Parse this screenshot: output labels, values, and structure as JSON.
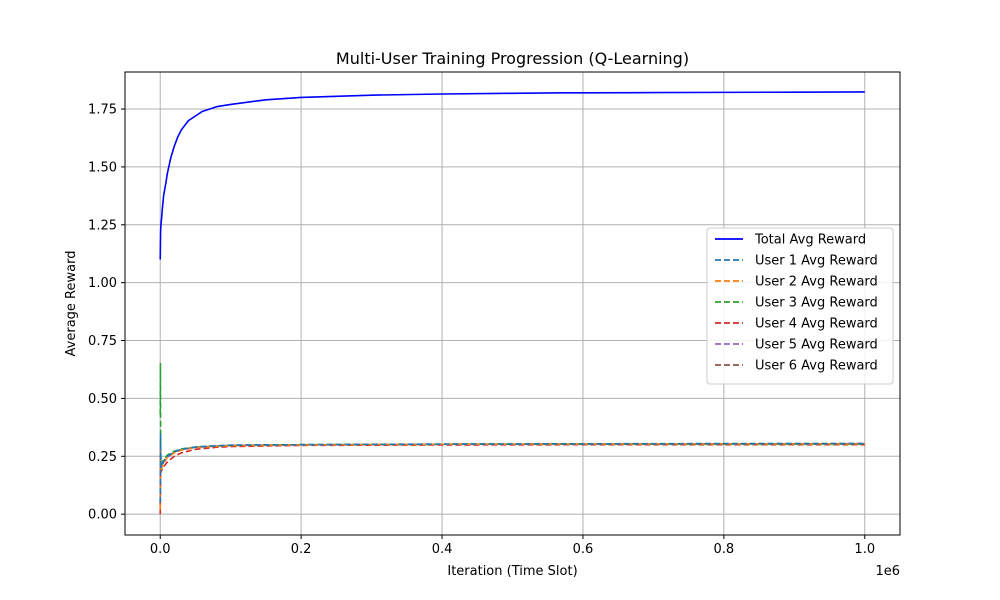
{
  "chart_data": {
    "type": "line",
    "title": "Multi-User Training Progression (Q-Learning)",
    "xlabel": "Iteration (Time Slot)",
    "ylabel": "Average Reward",
    "x_offset_label": "1e6",
    "xlim": [
      -50000,
      1050000
    ],
    "ylim": [
      -0.09,
      1.91
    ],
    "x_ticks": [
      0,
      200000,
      400000,
      600000,
      800000,
      1000000
    ],
    "x_tick_labels": [
      "0.0",
      "0.2",
      "0.4",
      "0.6",
      "0.8",
      "1.0"
    ],
    "y_ticks": [
      0.0,
      0.25,
      0.5,
      0.75,
      1.0,
      1.25,
      1.5,
      1.75
    ],
    "y_tick_labels": [
      "0.00",
      "0.25",
      "0.50",
      "0.75",
      "1.00",
      "1.25",
      "1.50",
      "1.75"
    ],
    "grid": true,
    "legend_position": "center-right",
    "series": [
      {
        "name": "Total Avg Reward",
        "color": "#0000ff",
        "style": "solid",
        "x": [
          0,
          500,
          1000,
          2000,
          3000,
          5000,
          8000,
          10000,
          15000,
          20000,
          25000,
          30000,
          40000,
          50000,
          60000,
          80000,
          100000,
          150000,
          200000,
          300000,
          400000,
          500000,
          570000,
          600000,
          700000,
          800000,
          900000,
          1000000
        ],
        "y": [
          1.1,
          1.22,
          1.25,
          1.28,
          1.32,
          1.38,
          1.43,
          1.47,
          1.54,
          1.59,
          1.63,
          1.66,
          1.7,
          1.72,
          1.74,
          1.76,
          1.77,
          1.79,
          1.8,
          1.81,
          1.815,
          1.818,
          1.82,
          1.82,
          1.821,
          1.822,
          1.823,
          1.824
        ]
      },
      {
        "name": "User 1 Avg Reward",
        "color": "#1f77b4",
        "style": "dashed",
        "x": [
          0,
          500,
          1000,
          2000,
          5000,
          10000,
          20000,
          30000,
          50000,
          80000,
          100000,
          200000,
          400000,
          600000,
          800000,
          1000000
        ],
        "y": [
          0.05,
          0.35,
          0.2,
          0.21,
          0.23,
          0.25,
          0.27,
          0.28,
          0.29,
          0.295,
          0.298,
          0.3,
          0.303,
          0.304,
          0.305,
          0.305
        ]
      },
      {
        "name": "User 2 Avg Reward",
        "color": "#ff7f0e",
        "style": "dashed",
        "x": [
          0,
          500,
          1000,
          2000,
          5000,
          10000,
          20000,
          30000,
          50000,
          80000,
          100000,
          200000,
          400000,
          600000,
          800000,
          1000000
        ],
        "y": [
          0.02,
          0.3,
          0.19,
          0.2,
          0.22,
          0.245,
          0.265,
          0.277,
          0.288,
          0.293,
          0.296,
          0.299,
          0.302,
          0.303,
          0.304,
          0.304
        ]
      },
      {
        "name": "User 3 Avg Reward",
        "color": "#2ca02c",
        "style": "dashed",
        "x": [
          0,
          300,
          600,
          1000,
          2000,
          5000,
          10000,
          20000,
          30000,
          50000,
          80000,
          100000,
          200000,
          400000,
          600000,
          800000,
          1000000
        ],
        "y": [
          0.43,
          0.65,
          0.3,
          0.21,
          0.22,
          0.235,
          0.255,
          0.272,
          0.282,
          0.29,
          0.295,
          0.297,
          0.3,
          0.302,
          0.303,
          0.303,
          0.303
        ]
      },
      {
        "name": "User 4 Avg Reward",
        "color": "#d62728",
        "style": "dashed",
        "x": [
          0,
          500,
          1000,
          2000,
          5000,
          10000,
          20000,
          30000,
          50000,
          80000,
          100000,
          200000,
          400000,
          600000,
          800000,
          1000000
        ],
        "y": [
          0.0,
          0.25,
          0.18,
          0.19,
          0.205,
          0.225,
          0.25,
          0.265,
          0.28,
          0.289,
          0.292,
          0.297,
          0.299,
          0.3,
          0.3,
          0.3
        ]
      },
      {
        "name": "User 5 Avg Reward",
        "color": "#9467bd",
        "style": "dashed",
        "x": [
          0,
          500,
          1000,
          2000,
          5000,
          10000,
          20000,
          30000,
          50000,
          80000,
          100000,
          200000,
          400000,
          600000,
          800000,
          1000000
        ],
        "y": [
          0.03,
          0.32,
          0.2,
          0.205,
          0.225,
          0.245,
          0.268,
          0.279,
          0.289,
          0.294,
          0.297,
          0.3,
          0.302,
          0.303,
          0.303,
          0.304
        ]
      },
      {
        "name": "User 6 Avg Reward",
        "color": "#8c564b",
        "style": "dashed",
        "x": [
          0,
          500,
          1000,
          2000,
          5000,
          10000,
          20000,
          30000,
          50000,
          80000,
          100000,
          200000,
          400000,
          600000,
          800000,
          1000000
        ],
        "y": [
          0.04,
          0.28,
          0.21,
          0.215,
          0.23,
          0.25,
          0.27,
          0.28,
          0.29,
          0.295,
          0.298,
          0.3,
          0.302,
          0.303,
          0.304,
          0.305
        ]
      }
    ]
  }
}
